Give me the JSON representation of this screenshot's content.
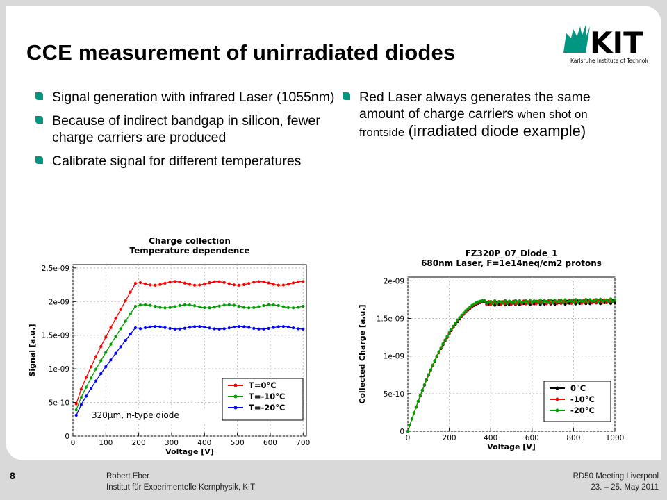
{
  "slide": {
    "title": "CCE measurement of unirradiated diodes",
    "logo": {
      "text": "KIT",
      "subtitle": "Karlsruhe Institute of Technology",
      "color": "#009682"
    },
    "bullet_color": "#009682",
    "bullets_left": [
      "Signal generation with infrared Laser (1055nm)",
      "Because of indirect bandgap in silicon, fewer charge carriers are produced",
      "Calibrate signal for different temperatures"
    ],
    "bullet_right": {
      "part1": "Red Laser always generates the same amount of charge carriers",
      "part2": "when shot on frontside",
      "part3": "(irradiated diode example)"
    }
  },
  "footer": {
    "page_number": "8",
    "author": "Robert Eber",
    "institute": "Institut für Experimentelle Kernphysik, KIT",
    "meeting": "RD50 Meeting Liverpool",
    "date": "23. – 25. May 2011"
  },
  "chart_data": [
    {
      "type": "line",
      "title": "Charge collection",
      "subtitle": "Temperature dependence",
      "xlabel": "Voltage [V]",
      "ylabel": "Signal [a.u.]",
      "xlim": [
        0,
        710
      ],
      "ylim": [
        0,
        2.55e-09
      ],
      "xticks": [
        0,
        100,
        200,
        300,
        400,
        500,
        600,
        700
      ],
      "xtick_labels": [
        "0",
        "100",
        "200",
        "300",
        "400",
        "500",
        "600",
        "700"
      ],
      "yticks": [
        0,
        5e-10,
        1e-09,
        1.5e-09,
        2e-09,
        2.5e-09
      ],
      "ytick_labels": [
        "0",
        "5e-10",
        "1e-09",
        "1.5e-09",
        "2e-09",
        "2.5e-09"
      ],
      "grid": true,
      "legend_position": "bottom-right",
      "annotation": "320µm, n-type diode",
      "series": [
        {
          "name": "T=0°C",
          "color": "#ff0000",
          "plateau": 2.27e-09,
          "start": 4.8e-10
        },
        {
          "name": "T=-10°C",
          "color": "#00a000",
          "plateau": 1.93e-09,
          "start": 3.9e-10
        },
        {
          "name": "T=-20°C",
          "color": "#0000ff",
          "plateau": 1.61e-09,
          "start": 3.1e-10
        }
      ],
      "x_start": 10,
      "x_knee": 190,
      "x_end": 700,
      "x_step": 15
    },
    {
      "type": "line",
      "title": "FZ320P_07_Diode_1",
      "subtitle": "680nm Laser, F=1e14neq/cm2 protons",
      "xlabel": "Voltage [V]",
      "ylabel": "Collected Charge [a.u.]",
      "xlim": [
        0,
        1000
      ],
      "ylim": [
        0,
        2.05e-09
      ],
      "xticks": [
        0,
        200,
        400,
        600,
        800,
        1000
      ],
      "xtick_labels": [
        "0",
        "200",
        "400",
        "600",
        "800",
        "1000"
      ],
      "yticks": [
        0,
        5e-10,
        1e-09,
        1.5e-09,
        2e-09
      ],
      "ytick_labels": [
        "0",
        "5e-10",
        "1e-09",
        "1.5e-09",
        "2e-09"
      ],
      "grid": true,
      "legend_position": "bottom-right",
      "series": [
        {
          "name": "0°C",
          "color": "#000000",
          "plateau": 1.72e-09
        },
        {
          "name": "-10°C",
          "color": "#ff0000",
          "plateau": 1.73e-09
        },
        {
          "name": "-20°C",
          "color": "#00a000",
          "plateau": 1.74e-09
        }
      ],
      "x_start": 0,
      "x_knee": 370,
      "x_end": 1000,
      "x_step": 10
    }
  ]
}
